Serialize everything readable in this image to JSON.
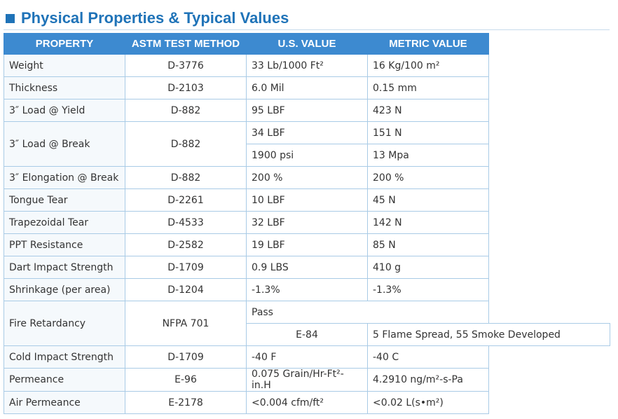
{
  "header": {
    "title": "Physical Properties & Typical Values"
  },
  "table": {
    "columns": [
      "PROPERTY",
      "ASTM TEST METHOD",
      "U.S. VALUE",
      "METRIC VALUE"
    ],
    "rows": [
      [
        "Weight",
        "D-3776",
        "33 Lb/1000 Ft²",
        "16 Kg/100 m²"
      ],
      [
        "Thickness",
        "D-2103",
        "6.0 Mil",
        "0.15 mm"
      ],
      [
        "3″ Load @ Yield",
        "D-882",
        "95 LBF",
        "423 N"
      ],
      [
        "3″ Load @ Break",
        "D-882",
        "34 LBF",
        "151 N"
      ],
      [
        "1900 psi",
        "13 Mpa"
      ],
      [
        "3″ Elongation @ Break",
        "D-882",
        "200 %",
        "200 %"
      ],
      [
        "Tongue Tear",
        "D-2261",
        "10 LBF",
        "45 N"
      ],
      [
        "Trapezoidal Tear",
        "D-4533",
        "32 LBF",
        "142 N"
      ],
      [
        "PPT Resistance",
        "D-2582",
        "19 LBF",
        "85 N"
      ],
      [
        "Dart Impact Strength",
        "D-1709",
        "0.9 LBS",
        "410 g"
      ],
      [
        "Shrinkage (per area)",
        "D-1204",
        "-1.3%",
        "-1.3%"
      ],
      [
        "Fire Retardancy",
        "NFPA 701",
        "Pass"
      ],
      [
        "E-84",
        "5 Flame Spread, 55 Smoke Developed"
      ],
      [
        "Cold Impact Strength",
        "D-1709",
        "-40 F",
        "-40 C"
      ],
      [
        "Permeance",
        "E-96",
        "0.075 Grain/Hr-Ft²-in.H",
        "4.2910 ng/m²-s-Pa"
      ],
      [
        "Air Permeance",
        "E-2178",
        "<0.004 cfm/ft²",
        "<0.02 L(s•m²)"
      ]
    ]
  }
}
